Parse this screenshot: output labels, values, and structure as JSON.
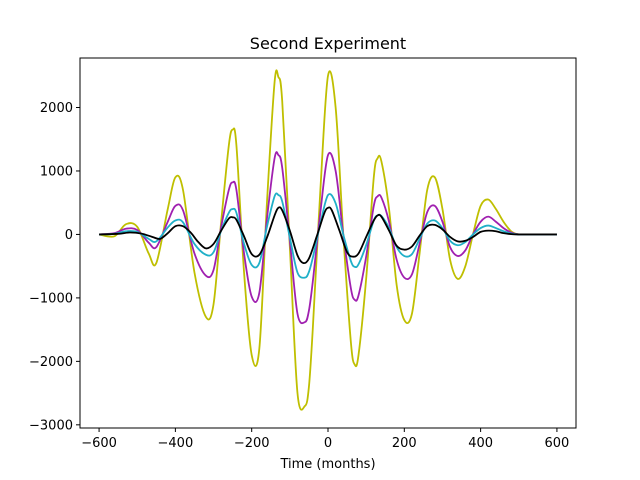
{
  "chart_data": {
    "type": "line",
    "title": "Second Experiment",
    "xlabel": "Time (months)",
    "ylabel": "",
    "xlim": [
      -650,
      650
    ],
    "ylim": [
      -3050,
      2780
    ],
    "xticks": [
      -600,
      -400,
      -200,
      0,
      200,
      400,
      600
    ],
    "yticks": [
      -3000,
      -2000,
      -1000,
      0,
      1000,
      2000
    ],
    "grid": false,
    "legend": "none",
    "series": [
      {
        "color": "#bfbf00",
        "x": [
          -600,
          -560,
          -530,
          -500,
          -470,
          -450,
          -420,
          -400,
          -380,
          -350,
          -320,
          -300,
          -280,
          -260,
          -250,
          -240,
          -220,
          -200,
          -180,
          -160,
          -140,
          -130,
          -120,
          -100,
          -80,
          -60,
          -50,
          -40,
          -20,
          0,
          20,
          40,
          60,
          70,
          80,
          100,
          120,
          130,
          140,
          160,
          180,
          200,
          220,
          240,
          260,
          280,
          300,
          320,
          340,
          360,
          380,
          400,
          420,
          440,
          460,
          480,
          500,
          530,
          560,
          600
        ],
        "y": [
          0,
          -30,
          160,
          120,
          -300,
          -450,
          400,
          900,
          700,
          -600,
          -1300,
          -1100,
          200,
          1400,
          1650,
          1400,
          -600,
          -1900,
          -1800,
          500,
          2400,
          2480,
          2100,
          -200,
          -2500,
          -2700,
          -2400,
          -1500,
          700,
          2500,
          2000,
          0,
          -1700,
          -2050,
          -1900,
          -700,
          900,
          1200,
          1150,
          400,
          -800,
          -1350,
          -1250,
          -300,
          700,
          900,
          400,
          -400,
          -700,
          -500,
          0,
          450,
          550,
          400,
          200,
          50,
          0,
          0,
          0,
          0
        ]
      },
      {
        "color": "#a020b0",
        "x": [
          -600,
          -560,
          -530,
          -500,
          -470,
          -450,
          -420,
          -400,
          -380,
          -350,
          -320,
          -300,
          -280,
          -260,
          -250,
          -240,
          -220,
          -200,
          -180,
          -160,
          -140,
          -130,
          -120,
          -100,
          -80,
          -60,
          -50,
          -40,
          -20,
          0,
          20,
          40,
          60,
          70,
          80,
          100,
          120,
          130,
          140,
          160,
          180,
          200,
          220,
          240,
          260,
          280,
          300,
          320,
          340,
          360,
          380,
          400,
          420,
          440,
          460,
          480,
          500,
          530,
          560,
          600
        ],
        "y": [
          0,
          20,
          90,
          70,
          -130,
          -200,
          200,
          450,
          380,
          -300,
          -650,
          -560,
          120,
          700,
          820,
          700,
          -300,
          -980,
          -920,
          250,
          1200,
          1250,
          1050,
          -100,
          -1250,
          -1380,
          -1200,
          -750,
          350,
          1250,
          1000,
          0,
          -850,
          -1030,
          -960,
          -350,
          450,
          600,
          580,
          200,
          -400,
          -680,
          -630,
          -150,
          350,
          450,
          200,
          -200,
          -340,
          -250,
          0,
          200,
          280,
          200,
          100,
          30,
          0,
          0,
          0,
          0
        ]
      },
      {
        "color": "#20b0c8",
        "x": [
          -600,
          -560,
          -530,
          -500,
          -470,
          -450,
          -420,
          -400,
          -380,
          -350,
          -320,
          -300,
          -280,
          -260,
          -250,
          -240,
          -220,
          -200,
          -180,
          -160,
          -140,
          -130,
          -120,
          -100,
          -80,
          -60,
          -50,
          -40,
          -20,
          0,
          20,
          40,
          60,
          70,
          80,
          100,
          120,
          130,
          140,
          160,
          180,
          200,
          220,
          240,
          260,
          280,
          300,
          320,
          340,
          360,
          380,
          400,
          420,
          440,
          460,
          480,
          500,
          530,
          560,
          600
        ],
        "y": [
          0,
          10,
          50,
          40,
          -70,
          -110,
          110,
          220,
          190,
          -150,
          -320,
          -280,
          60,
          340,
          400,
          340,
          -150,
          -480,
          -450,
          120,
          600,
          620,
          520,
          -50,
          -600,
          -680,
          -590,
          -370,
          170,
          620,
          490,
          0,
          -420,
          -510,
          -470,
          -170,
          220,
          300,
          290,
          100,
          -200,
          -340,
          -310,
          -70,
          170,
          220,
          100,
          -100,
          -170,
          -120,
          0,
          100,
          140,
          100,
          50,
          15,
          0,
          0,
          0,
          0
        ]
      },
      {
        "color": "#000000",
        "x": [
          -600,
          -550,
          -520,
          -490,
          -460,
          -440,
          -420,
          -400,
          -380,
          -360,
          -340,
          -320,
          -300,
          -280,
          -260,
          -250,
          -240,
          -220,
          -200,
          -180,
          -160,
          -140,
          -130,
          -120,
          -100,
          -80,
          -65,
          -50,
          -30,
          -10,
          0,
          10,
          30,
          50,
          65,
          80,
          100,
          120,
          130,
          140,
          160,
          180,
          200,
          220,
          240,
          260,
          280,
          300,
          320,
          340,
          360,
          380,
          400,
          420,
          440,
          460,
          480,
          500,
          550,
          600
        ],
        "y": [
          0,
          10,
          30,
          15,
          -40,
          -70,
          20,
          130,
          130,
          30,
          -120,
          -220,
          -150,
          60,
          250,
          270,
          230,
          -30,
          -310,
          -320,
          -50,
          300,
          420,
          380,
          60,
          -330,
          -450,
          -380,
          -40,
          330,
          420,
          380,
          60,
          -280,
          -350,
          -300,
          -40,
          220,
          300,
          280,
          60,
          -180,
          -240,
          -190,
          -20,
          130,
          150,
          80,
          -40,
          -110,
          -100,
          -40,
          40,
          60,
          50,
          20,
          5,
          0,
          0,
          0
        ]
      }
    ]
  }
}
